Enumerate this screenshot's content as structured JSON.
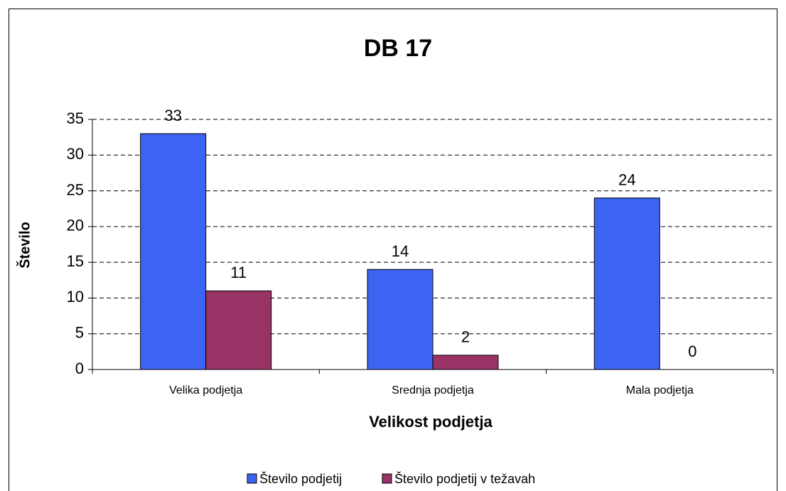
{
  "chart_data": {
    "type": "bar",
    "title": "DB 17",
    "x_label": "Velikost podjetja",
    "y_label": "Število",
    "categories": [
      "Velika podjetja",
      "Srednja podjetja",
      "Mala podjetja"
    ],
    "series": [
      {
        "name": "Število podjetij",
        "color": "#3d63f2",
        "values": [
          33,
          14,
          24
        ]
      },
      {
        "name": "Število podjetij v težavah",
        "color": "#993366",
        "values": [
          11,
          2,
          0
        ]
      }
    ],
    "ylim": [
      0,
      35
    ],
    "yticks": [
      0,
      5,
      10,
      15,
      20,
      25,
      30,
      35
    ],
    "grid": true,
    "legend": "bottom"
  }
}
